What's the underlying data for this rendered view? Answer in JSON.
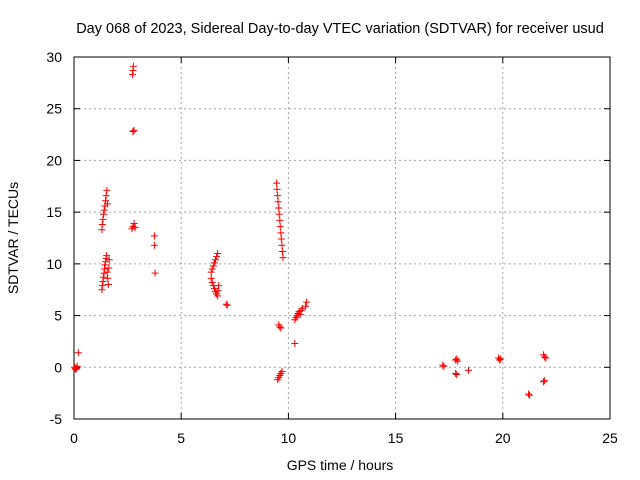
{
  "chart_data": {
    "type": "scatter",
    "title": "Day 068 of 2023, Sidereal Day-to-day VTEC variation (SDTVAR) for receiver usud",
    "xlabel": "GPS time / hours",
    "ylabel": "SDTVAR / TECUs",
    "xlim": [
      0,
      25
    ],
    "ylim": [
      -5,
      30
    ],
    "xticks": [
      0,
      5,
      10,
      15,
      20,
      25
    ],
    "yticks": [
      -5,
      0,
      5,
      10,
      15,
      20,
      25,
      30
    ],
    "grid": true,
    "marker": "+",
    "color": "#ff0000",
    "points": [
      [
        0.03,
        0
      ],
      [
        0.06,
        -0.1
      ],
      [
        0.09,
        -0.2
      ],
      [
        0.12,
        -0.1
      ],
      [
        0.15,
        0.1
      ],
      [
        0.2,
        1.4
      ],
      [
        1.3,
        7.5
      ],
      [
        1.32,
        7.9
      ],
      [
        1.35,
        8.3
      ],
      [
        1.37,
        8.7
      ],
      [
        1.4,
        9.1
      ],
      [
        1.42,
        9.5
      ],
      [
        1.45,
        9.9
      ],
      [
        1.47,
        10.2
      ],
      [
        1.5,
        10.5
      ],
      [
        1.52,
        10.8
      ],
      [
        1.55,
        9.2
      ],
      [
        1.57,
        8.6
      ],
      [
        1.6,
        8.0
      ],
      [
        1.62,
        9.6
      ],
      [
        1.64,
        10.4
      ],
      [
        1.3,
        13.3
      ],
      [
        1.32,
        13.8
      ],
      [
        1.35,
        14.3
      ],
      [
        1.38,
        14.8
      ],
      [
        1.41,
        15.2
      ],
      [
        1.44,
        15.6
      ],
      [
        1.47,
        16.1
      ],
      [
        1.5,
        16.6
      ],
      [
        1.53,
        17.1
      ],
      [
        1.56,
        15.8
      ],
      [
        2.73,
        28.3
      ],
      [
        2.75,
        28.7
      ],
      [
        2.77,
        29.1
      ],
      [
        2.75,
        22.8
      ],
      [
        2.8,
        22.9
      ],
      [
        2.7,
        13.4
      ],
      [
        2.75,
        13.6
      ],
      [
        2.8,
        13.9
      ],
      [
        2.85,
        13.5
      ],
      [
        3.75,
        12.7
      ],
      [
        3.75,
        11.8
      ],
      [
        3.78,
        9.1
      ],
      [
        6.4,
        9.2
      ],
      [
        6.45,
        9.5
      ],
      [
        6.5,
        9.8
      ],
      [
        6.55,
        10.1
      ],
      [
        6.6,
        10.4
      ],
      [
        6.65,
        10.7
      ],
      [
        6.7,
        11.0
      ],
      [
        6.4,
        8.6
      ],
      [
        6.45,
        8.2
      ],
      [
        6.5,
        7.9
      ],
      [
        6.55,
        7.6
      ],
      [
        6.6,
        7.3
      ],
      [
        6.65,
        7.1
      ],
      [
        6.7,
        6.9
      ],
      [
        6.72,
        7.4
      ],
      [
        6.75,
        7.9
      ],
      [
        7.1,
        6.1
      ],
      [
        7.15,
        6.0
      ],
      [
        9.45,
        17.8
      ],
      [
        9.47,
        17.2
      ],
      [
        9.5,
        16.6
      ],
      [
        9.52,
        16.0
      ],
      [
        9.55,
        15.4
      ],
      [
        9.57,
        14.8
      ],
      [
        9.6,
        14.2
      ],
      [
        9.62,
        13.6
      ],
      [
        9.65,
        13.0
      ],
      [
        9.67,
        12.4
      ],
      [
        9.7,
        11.8
      ],
      [
        9.72,
        11.2
      ],
      [
        9.75,
        10.6
      ],
      [
        9.55,
        4.1
      ],
      [
        9.6,
        3.9
      ],
      [
        9.65,
        3.8
      ],
      [
        9.5,
        -1.2
      ],
      [
        9.55,
        -1.0
      ],
      [
        9.6,
        -0.8
      ],
      [
        9.65,
        -0.6
      ],
      [
        9.7,
        -0.4
      ],
      [
        10.3,
        2.3
      ],
      [
        10.3,
        4.6
      ],
      [
        10.35,
        4.8
      ],
      [
        10.4,
        5.0
      ],
      [
        10.45,
        5.2
      ],
      [
        10.5,
        5.4
      ],
      [
        10.55,
        5.1
      ],
      [
        10.6,
        5.5
      ],
      [
        10.65,
        5.7
      ],
      [
        10.8,
        5.9
      ],
      [
        10.85,
        6.3
      ],
      [
        17.2,
        0.2
      ],
      [
        17.25,
        0.1
      ],
      [
        17.8,
        0.7
      ],
      [
        17.85,
        0.8
      ],
      [
        17.9,
        0.6
      ],
      [
        17.8,
        -0.6
      ],
      [
        17.85,
        -0.7
      ],
      [
        18.4,
        -0.3
      ],
      [
        19.8,
        0.9
      ],
      [
        19.85,
        0.7
      ],
      [
        19.9,
        0.8
      ],
      [
        21.2,
        -2.6
      ],
      [
        21.25,
        -2.7
      ],
      [
        21.9,
        1.2
      ],
      [
        21.95,
        1.0
      ],
      [
        22.0,
        0.9
      ],
      [
        21.9,
        -1.4
      ],
      [
        21.95,
        -1.3
      ]
    ]
  }
}
